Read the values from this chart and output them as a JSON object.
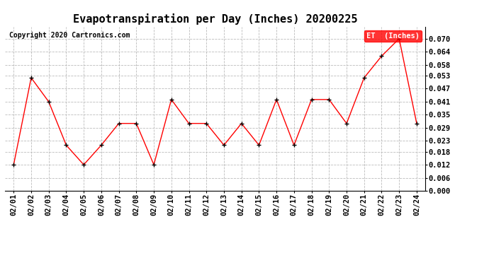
{
  "title": "Evapotranspiration per Day (Inches) 20200225",
  "copyright": "Copyright 2020 Cartronics.com",
  "legend_label": "ET  (Inches)",
  "dates": [
    "02/01",
    "02/02",
    "02/03",
    "02/04",
    "02/05",
    "02/06",
    "02/07",
    "02/08",
    "02/09",
    "02/10",
    "02/11",
    "02/12",
    "02/13",
    "02/14",
    "02/15",
    "02/16",
    "02/17",
    "02/18",
    "02/19",
    "02/20",
    "02/21",
    "02/22",
    "02/23",
    "02/24"
  ],
  "values": [
    0.012,
    0.052,
    0.041,
    0.021,
    0.012,
    0.021,
    0.031,
    0.031,
    0.012,
    0.042,
    0.031,
    0.031,
    0.021,
    0.031,
    0.021,
    0.042,
    0.021,
    0.042,
    0.042,
    0.031,
    0.052,
    0.062,
    0.07,
    0.031
  ],
  "ylim": [
    0.0,
    0.0756
  ],
  "yticks": [
    0.0,
    0.006,
    0.012,
    0.018,
    0.023,
    0.029,
    0.035,
    0.041,
    0.047,
    0.053,
    0.058,
    0.064,
    0.07
  ],
  "line_color": "red",
  "marker": "+",
  "marker_color": "black",
  "bg_color": "white",
  "grid_color": "#bbbbbb",
  "title_fontsize": 11,
  "tick_fontsize": 7.5,
  "copyright_fontsize": 7,
  "legend_bg": "red",
  "legend_fg": "white",
  "legend_fontsize": 7.5
}
